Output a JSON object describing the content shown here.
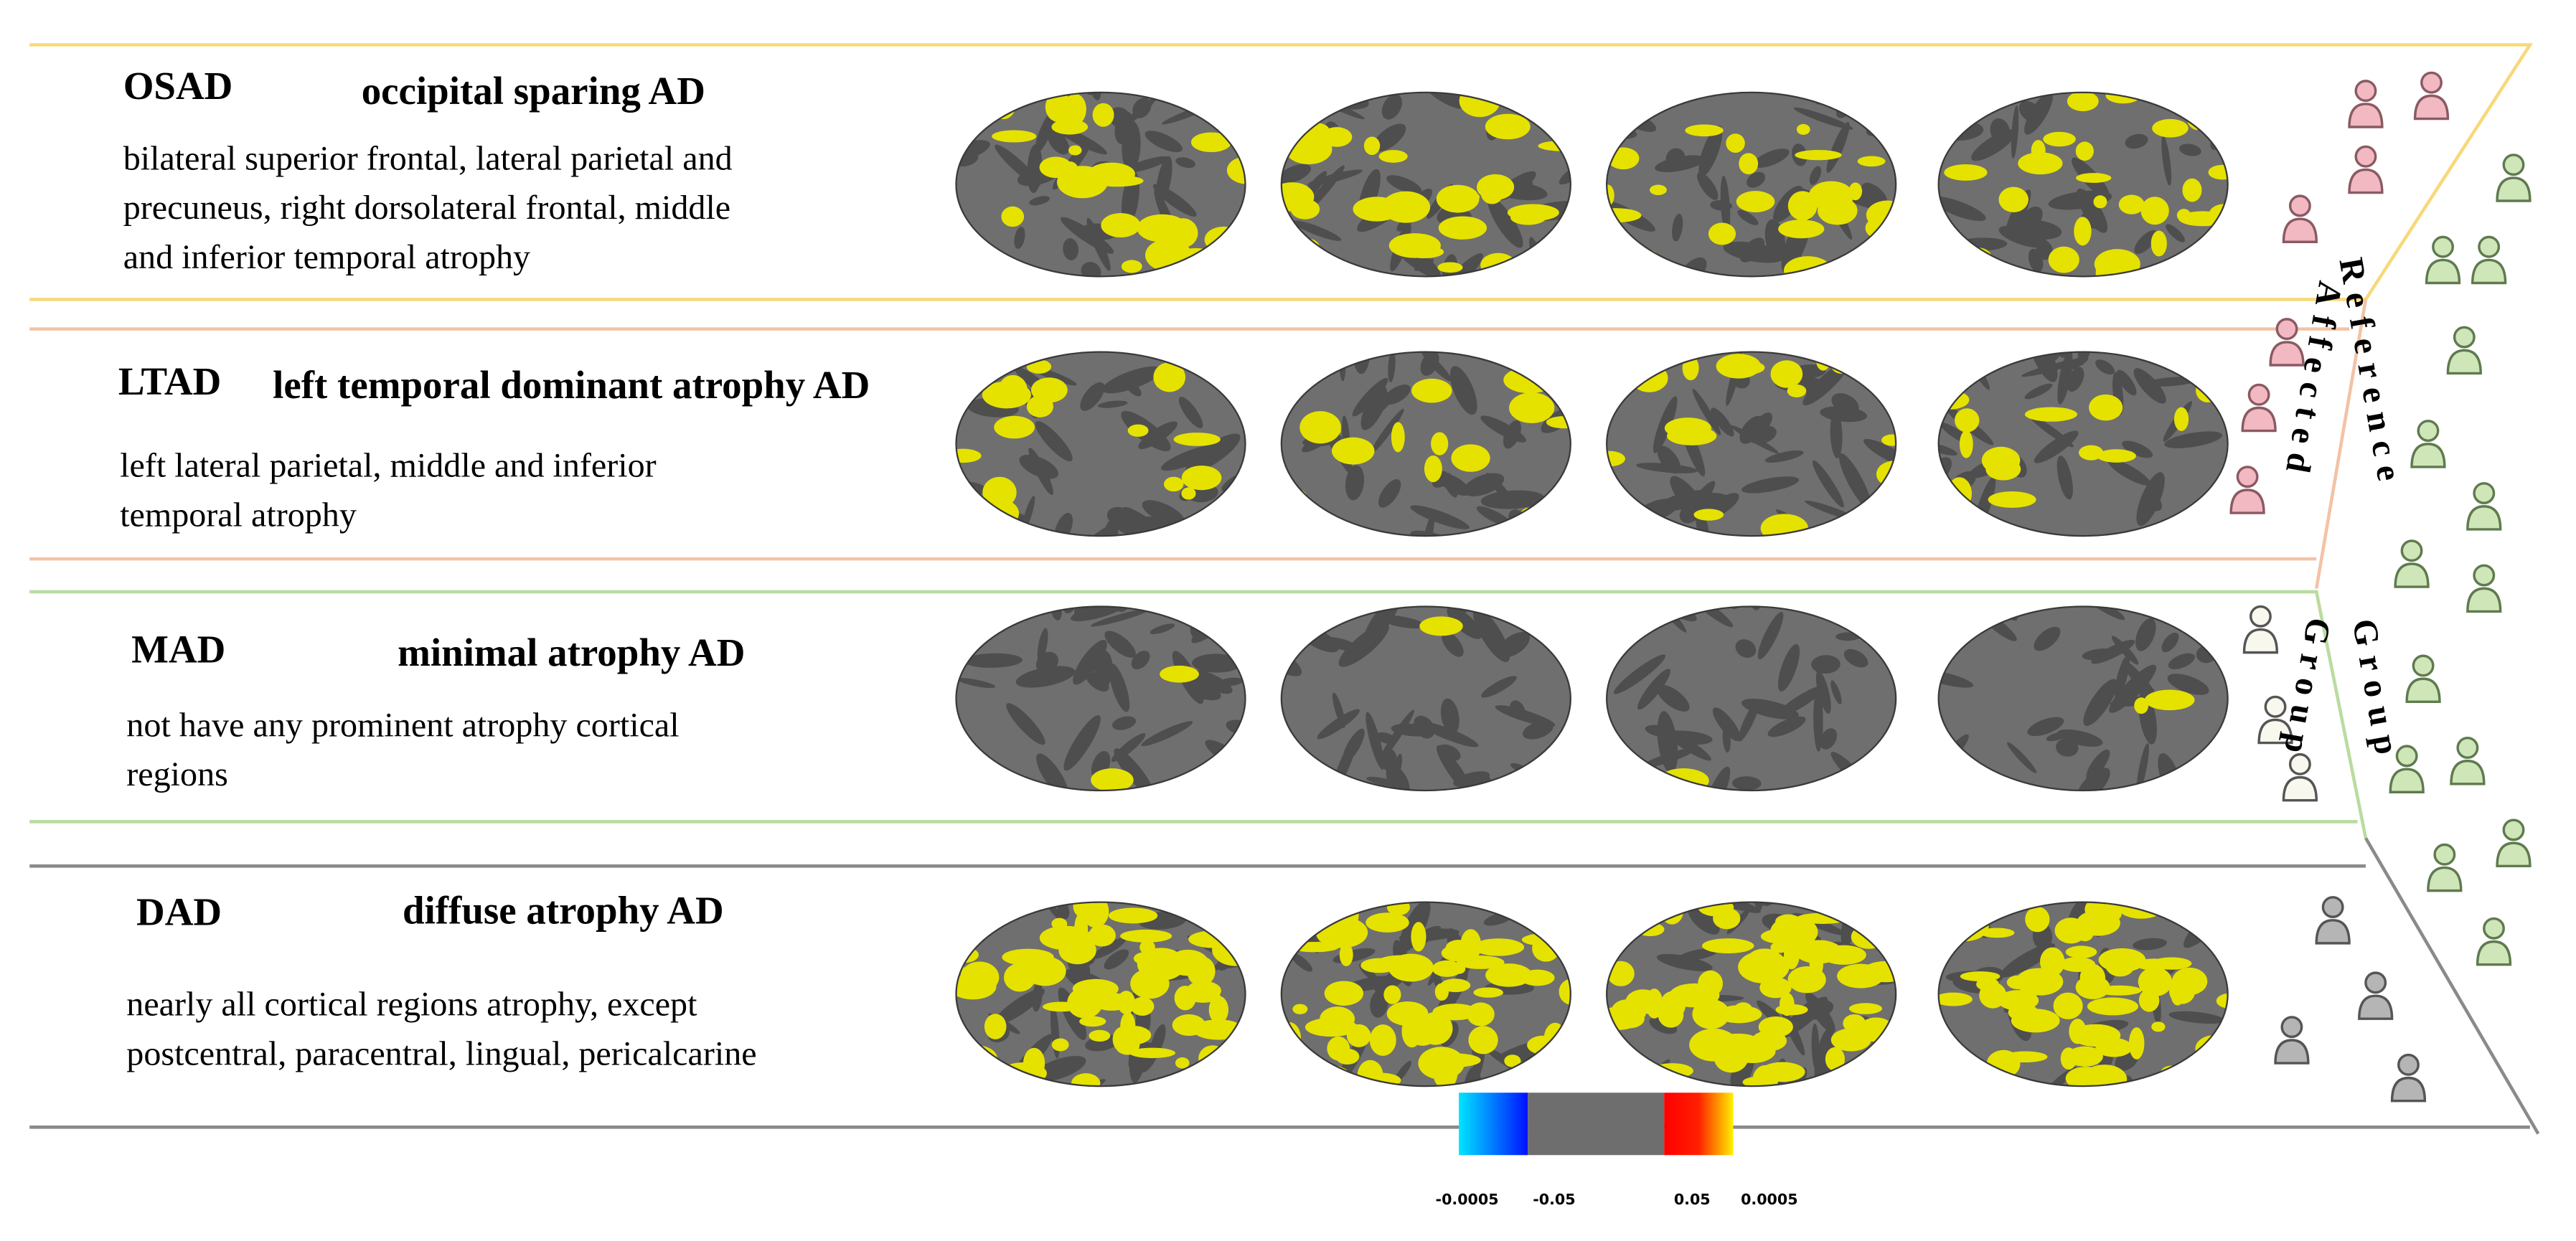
{
  "rows": [
    {
      "code": "OSAD",
      "name": "occipital sparing AD",
      "description": [
        "bilateral superior frontal, lateral parietal and",
        "precuneus, right dorsolateral frontal, middle",
        "and inferior temporal atrophy"
      ]
    },
    {
      "code": "LTAD",
      "name": "left temporal dominant atrophy AD",
      "description": [
        "left lateral parietal, middle and inferior",
        "temporal atrophy"
      ]
    },
    {
      "code": "MAD",
      "name": "minimal atrophy AD",
      "description": [
        "not have any prominent atrophy cortical",
        "regions"
      ]
    },
    {
      "code": "DAD",
      "name": "diffuse atrophy AD",
      "description": [
        "nearly all cortical regions atrophy, except",
        "postcentral, paracentral, lingual, pericalcarine"
      ]
    }
  ],
  "group_labels": {
    "reference": "Reference",
    "reference_group": "Group",
    "affected": "Affected",
    "affected_group": "Group"
  },
  "colorbar": {
    "labels": [
      "-0.0005",
      "-0.05",
      "0.05",
      "0.0005"
    ]
  }
}
